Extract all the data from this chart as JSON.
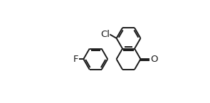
{
  "bg_color": "#ffffff",
  "line_color": "#1a1a1a",
  "line_width": 1.4,
  "label_Cl": "Cl",
  "label_F": "F",
  "label_O": "O",
  "font_size": 9.5,
  "bl": 0.118
}
